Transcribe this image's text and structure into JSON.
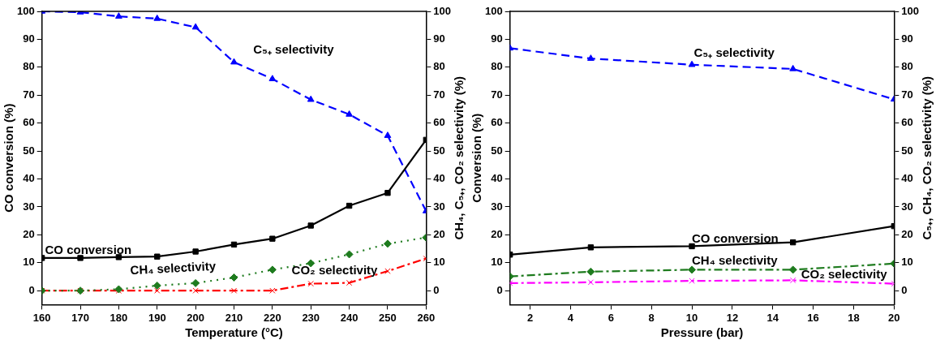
{
  "chart_data": [
    {
      "type": "line",
      "xlabel": "Temperature (°C)",
      "ylabel": "CO conversion (%)",
      "y2label": "CH₄, C₅₊, CO₂ selectivity (%)",
      "x": [
        160,
        170,
        180,
        190,
        200,
        210,
        220,
        230,
        240,
        250,
        260
      ],
      "xlim": [
        160,
        260
      ],
      "xticks": [
        160,
        170,
        180,
        190,
        200,
        210,
        220,
        230,
        240,
        250,
        260
      ],
      "ylim": [
        -5,
        100
      ],
      "yticks": [
        0,
        10,
        20,
        30,
        40,
        50,
        60,
        70,
        80,
        90,
        100
      ],
      "y2lim": [
        -5,
        100
      ],
      "y2ticks": [
        0,
        10,
        20,
        30,
        40,
        50,
        60,
        70,
        80,
        90,
        100
      ],
      "grid": false,
      "legend": false,
      "series": [
        {
          "name": "CO conversion",
          "color": "#000000",
          "marker": "square",
          "line_style": "solid",
          "values": [
            11.7,
            11.7,
            12,
            12.2,
            14,
            16.5,
            18.6,
            23.3,
            30.4,
            35,
            54
          ]
        },
        {
          "name": "C₅₊ selectivity",
          "color": "#0000ff",
          "marker": "triangle",
          "line_style": "dashed",
          "values": [
            100,
            99.7,
            98.2,
            97.4,
            94.3,
            81.8,
            75.8,
            68.4,
            63.1,
            55.5,
            28.5
          ]
        },
        {
          "name": "CH₄ selectivity",
          "color": "#1e7b1e",
          "marker": "diamond",
          "line_style": "dotted",
          "values": [
            0,
            0,
            0.5,
            1.8,
            2.7,
            4.7,
            7.5,
            9.8,
            13,
            16.8,
            19
          ]
        },
        {
          "name": "CO₂ selectivity",
          "color": "#ff0000",
          "marker": "cross",
          "line_style": "dashdot",
          "values": [
            0,
            0,
            0,
            0,
            0,
            0,
            0,
            2.5,
            2.8,
            7,
            11.5
          ]
        }
      ]
    },
    {
      "type": "line",
      "xlabel": "Pressure (bar)",
      "ylabel": "Conversion (%)",
      "y2label": "C₅₊, CH₄, CO₂ selectivity (%)",
      "x": [
        1,
        5,
        10,
        15,
        20
      ],
      "xlim": [
        1,
        20
      ],
      "xticks": [
        2,
        4,
        6,
        8,
        10,
        12,
        14,
        16,
        18,
        20
      ],
      "ylim": [
        -5,
        100
      ],
      "yticks": [
        0,
        10,
        20,
        30,
        40,
        50,
        60,
        70,
        80,
        90,
        100
      ],
      "y2lim": [
        -5,
        100
      ],
      "y2ticks": [
        0,
        10,
        20,
        30,
        40,
        50,
        60,
        70,
        80,
        90,
        100
      ],
      "grid": false,
      "legend": false,
      "series": [
        {
          "name": "CO conversion",
          "color": "#000000",
          "marker": "square",
          "line_style": "solid",
          "values": [
            12.9,
            15.5,
            15.9,
            17.3,
            23.1
          ]
        },
        {
          "name": "C₅₊ selectivity",
          "color": "#0000ff",
          "marker": "triangle",
          "line_style": "dashed",
          "values": [
            86.8,
            83.1,
            80.9,
            79.4,
            68.5
          ]
        },
        {
          "name": "CH₄ selectivity",
          "color": "#1e7b1e",
          "marker": "diamond",
          "line_style": "dashdot",
          "values": [
            5.1,
            6.8,
            7.5,
            7.5,
            9.7
          ]
        },
        {
          "name": "CO₂ selectivity",
          "color": "#ff00ff",
          "marker": "cross",
          "line_style": "dashdot",
          "values": [
            2.7,
            3,
            3.5,
            3.7,
            2.5
          ]
        }
      ]
    }
  ]
}
